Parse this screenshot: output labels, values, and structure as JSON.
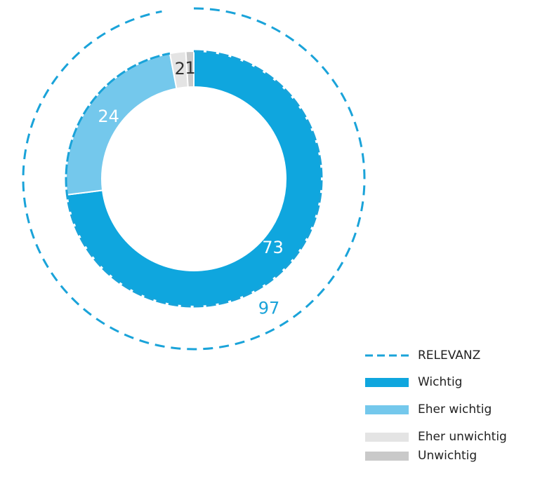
{
  "chart_data": {
    "type": "donut",
    "categories": [
      "Wichtig",
      "Eher wichtig",
      "Eher unwichtig",
      "Unwichtig"
    ],
    "values": [
      73,
      24,
      2,
      1
    ],
    "colors": [
      "#0fa6de",
      "#74c8ec",
      "#e4e4e4",
      "#c9c9c9"
    ],
    "value_label_colors": [
      "#ffffff",
      "#ffffff",
      "#333333",
      "#333333"
    ],
    "relevance": {
      "name": "RELEVANZ",
      "value": 97,
      "color": "#1aa3d9"
    }
  }
}
